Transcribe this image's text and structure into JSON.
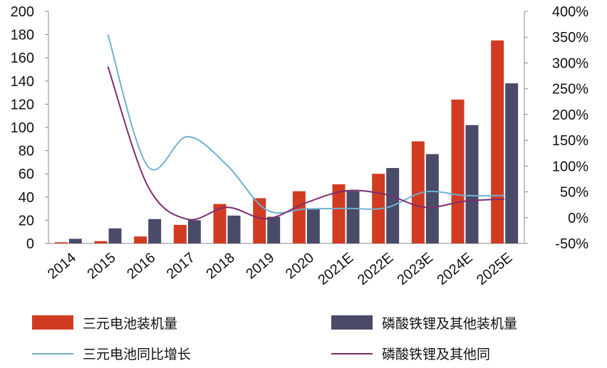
{
  "chart_data": {
    "type": "bar",
    "categories": [
      "2014",
      "2015",
      "2016",
      "2017",
      "2018",
      "2019",
      "2020",
      "2021E",
      "2022E",
      "2023E",
      "2024E",
      "2025E"
    ],
    "series": [
      {
        "name": "三元电池装机量",
        "kind": "bar",
        "axis": "left",
        "color": "#d13b22",
        "values": [
          1,
          2,
          6,
          16,
          34,
          39,
          45,
          51,
          60,
          88,
          124,
          175
        ]
      },
      {
        "name": "磷酸铁锂及其他装机量",
        "kind": "bar",
        "axis": "left",
        "color": "#4a4a69",
        "values": [
          4,
          13,
          21,
          20,
          24,
          23,
          30,
          45,
          65,
          77,
          102,
          138
        ]
      },
      {
        "name": "三元电池同比增长",
        "kind": "line",
        "axis": "right",
        "color": "#6fb1cf",
        "values": [
          null,
          355,
          100,
          157,
          102,
          15,
          17,
          18,
          19,
          50,
          43,
          43
        ]
      },
      {
        "name": "磷酸铁锂及其他同",
        "kind": "line",
        "axis": "right",
        "color": "#7b2e6e",
        "values": [
          null,
          293,
          62,
          -3,
          20,
          -2,
          29,
          52,
          45,
          20,
          32,
          36
        ]
      }
    ],
    "y_left": {
      "min": 0,
      "max": 200,
      "ticks": [
        "0",
        "20",
        "40",
        "60",
        "80",
        "100",
        "120",
        "140",
        "160",
        "180",
        "200"
      ]
    },
    "y_right": {
      "min": -50,
      "max": 400,
      "ticks": [
        "-50%",
        "0%",
        "50%",
        "100%",
        "150%",
        "200%",
        "250%",
        "300%",
        "350%",
        "400%"
      ]
    },
    "grid": false,
    "legend_position": "bottom"
  }
}
